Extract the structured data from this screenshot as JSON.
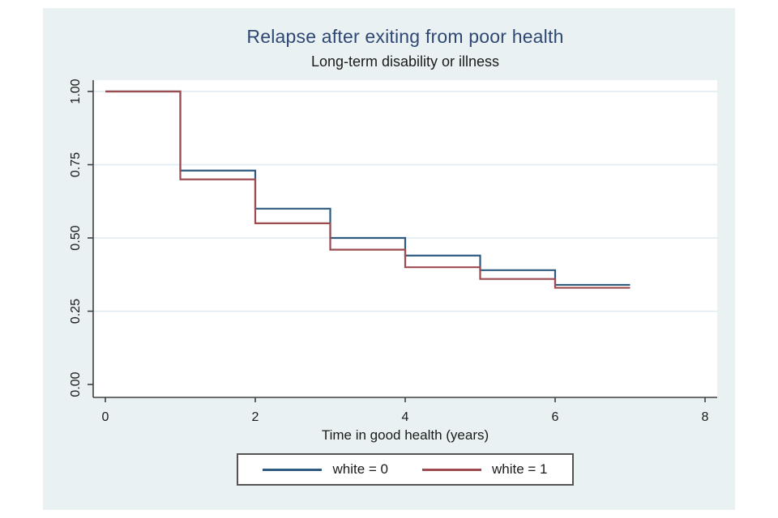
{
  "colors": {
    "canvas_bg": "#e9f1f3",
    "plot_bg": "#ffffff",
    "grid": "#ddebf1",
    "axis": "#3f3f3f",
    "title": "#2f4873",
    "text": "#1a1a1a",
    "legend_border": "#545454"
  },
  "chart_data": {
    "type": "line",
    "subtype": "kaplan-meier-step",
    "title": "Relapse after exiting from poor health",
    "subtitle": "Long-term disability or illness",
    "xlabel": "Time in good health (years)",
    "ylabel": "",
    "xlim": [
      0,
      8
    ],
    "ylim": [
      0,
      1
    ],
    "x_ticks": [
      "0",
      "2",
      "4",
      "6",
      "8"
    ],
    "y_ticks": [
      "0.00",
      "0.25",
      "0.50",
      "0.75",
      "1.00"
    ],
    "grid": true,
    "legend_position": "bottom",
    "series": [
      {
        "name": "white = 0",
        "color": "#2d5a7e",
        "step_x": [
          0,
          1,
          2,
          3,
          4,
          5,
          6
        ],
        "step_y": [
          1.0,
          0.73,
          0.6,
          0.5,
          0.44,
          0.39,
          0.34
        ],
        "x_end": 7
      },
      {
        "name": "white = 1",
        "color": "#9d4a51",
        "step_x": [
          0,
          1,
          2,
          3,
          4,
          5,
          6
        ],
        "step_y": [
          1.0,
          0.7,
          0.55,
          0.46,
          0.4,
          0.36,
          0.33
        ],
        "x_end": 7
      }
    ]
  }
}
